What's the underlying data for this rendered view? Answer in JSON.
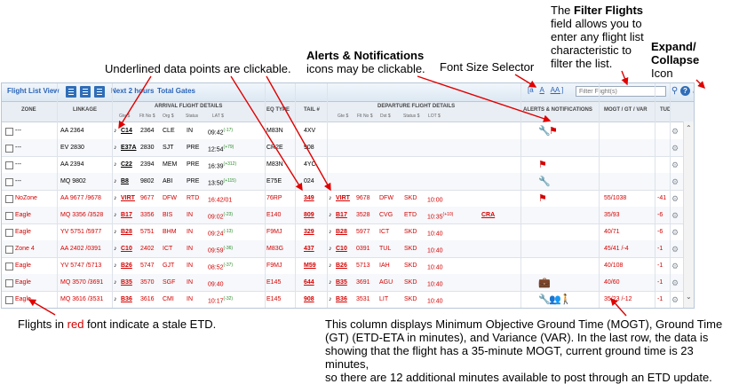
{
  "callouts": {
    "filter_title": "The Filter Flights",
    "filter_body": [
      "field allows you to",
      "enter any flight list",
      "characteristic to",
      "filter the list."
    ],
    "expand_title": "Expand/",
    "expand_title2": "Collapse",
    "expand_sub": "Icon",
    "alerts_title": "Alerts & Notifications",
    "alerts_body": "icons may be clickable.",
    "font_size": "Font Size Selector",
    "underlined": "Underlined data points are clickable.",
    "stale_pre": "Flights in ",
    "stale_red": "red",
    "stale_post": " font indicate a stale ETD.",
    "mogt_lines": [
      "This column displays Minimum Objective Ground Time (MOGT), Ground Time",
      "(GT) (ETD-ETA in minutes), and Variance (VAR). In the last row, the data is",
      "showing that the flight has a 35-minute MOGT, current ground time is 23 minutes,",
      "so there are 12 additional minutes available to post through an ETD update."
    ]
  },
  "toolbar": {
    "title": "Flight List View",
    "next_hours": "Next 2 hours",
    "total_gates": "Total Gates",
    "font_small": "[a",
    "font_med": "A",
    "font_large": "AA ]",
    "filter_placeholder": "Filter Flight(s)",
    "help": "?"
  },
  "header": {
    "zone": "ZONE",
    "linkage": "LINKAGE",
    "arrival": "ARRIVAL FLIGHT DETAILS",
    "arr_sub": [
      "Gte $",
      "Flt No $",
      "Org $",
      "Status",
      "LAT $"
    ],
    "eq_type": "EQ TYPE",
    "tail": "TAIL #",
    "departure": "DEPARTURE FLIGHT DETAILS",
    "dep_sub": [
      "Gte $",
      "Flt No $",
      "Dst $",
      "Status $",
      "LOT $"
    ],
    "alerts": "ALERTS & NOTIFICATIONS",
    "mogt": "MOGT / GT / VAR",
    "tud": "TUD"
  },
  "rows": [
    {
      "zone": "---",
      "linkage": "AA 2364",
      "agte": "C14",
      "aflt": "2364",
      "org": "CLE",
      "ast": "IN",
      "lat": "09:42",
      "latsup": "(-17)",
      "eq": "M83N",
      "tail": "4XV",
      "dgte": "",
      "dflt": "",
      "dst": "",
      "dstat": "",
      "lot": "",
      "lotsup": "",
      "extra": "",
      "mogt": "",
      "tud": "",
      "stale": false,
      "icons": "wrench-flag"
    },
    {
      "zone": "---",
      "linkage": "EV 2830",
      "agte": "E37A",
      "aflt": "2830",
      "org": "SJT",
      "ast": "PRE",
      "lat": "12:54",
      "latsup": "(+79)",
      "eq": "CR2E",
      "tail": "908",
      "dgte": "",
      "dflt": "",
      "dst": "",
      "dstat": "",
      "lot": "",
      "lotsup": "",
      "extra": "",
      "mogt": "",
      "tud": "",
      "stale": false,
      "icons": ""
    },
    {
      "zone": "---",
      "linkage": "AA 2394",
      "agte": "C22",
      "aflt": "2394",
      "org": "MEM",
      "ast": "PRE",
      "lat": "16:39",
      "latsup": "(+312)",
      "eq": "M83N",
      "tail": "4YC",
      "dgte": "",
      "dflt": "",
      "dst": "",
      "dstat": "",
      "lot": "",
      "lotsup": "",
      "extra": "",
      "mogt": "",
      "tud": "",
      "stale": false,
      "icons": "flag"
    },
    {
      "zone": "---",
      "linkage": "MQ 9802",
      "agte": "B8",
      "aflt": "9802",
      "org": "ABI",
      "ast": "PRE",
      "lat": "13:50",
      "latsup": "(+115)",
      "eq": "E75E",
      "tail": "024",
      "dgte": "",
      "dflt": "",
      "dst": "",
      "dstat": "",
      "lot": "",
      "lotsup": "",
      "extra": "",
      "mogt": "",
      "tud": "",
      "stale": false,
      "icons": "wrench"
    },
    {
      "zone": "NoZone",
      "linkage": "AA 9677 /9678",
      "agte": "VIRT",
      "aflt": "9677",
      "org": "DFW",
      "ast": "RTD",
      "lat": "16:42/01",
      "latsup": "",
      "eq": "76RP",
      "tail": "349",
      "dgte": "VIRT",
      "dflt": "9678",
      "dst": "DFW",
      "dstat": "SKD",
      "lot": "10:00",
      "lotsup": "",
      "extra": "",
      "mogt": "55/1038",
      "tud": "-41",
      "stale": true,
      "icons": "flag"
    },
    {
      "zone": "Eagle",
      "linkage": "MQ 3356 /3528",
      "agte": "B17",
      "aflt": "3356",
      "org": "BIS",
      "ast": "IN",
      "lat": "09:02",
      "latsup": "(-23)",
      "eq": "E140",
      "tail": "809",
      "dgte": "B17",
      "dflt": "3528",
      "dst": "CVG",
      "dstat": "ETD",
      "lot": "10:35",
      "lotsup": "(+10)",
      "extra": "CRA",
      "mogt": "35/93",
      "tud": "-6",
      "stale": true,
      "icons": ""
    },
    {
      "zone": "Eagle",
      "linkage": "YV 5751 /5977",
      "agte": "B28",
      "aflt": "5751",
      "org": "BHM",
      "ast": "IN",
      "lat": "09:24",
      "latsup": "(-13)",
      "eq": "F9MJ",
      "tail": "329",
      "dgte": "B28",
      "dflt": "5977",
      "dst": "ICT",
      "dstat": "SKD",
      "lot": "10:40",
      "lotsup": "",
      "extra": "",
      "mogt": "40/71",
      "tud": "-6",
      "stale": true,
      "icons": ""
    },
    {
      "zone": "Zone 4",
      "linkage": "AA 2402 /0391",
      "agte": "C10",
      "aflt": "2402",
      "org": "ICT",
      "ast": "IN",
      "lat": "09:59",
      "latsup": "(-36)",
      "eq": "M83G",
      "tail": "437",
      "dgte": "C10",
      "dflt": "0391",
      "dst": "TUL",
      "dstat": "SKD",
      "lot": "10:40",
      "lotsup": "",
      "extra": "",
      "mogt": "45/41 /-4",
      "tud": "-1",
      "stale": true,
      "icons": ""
    },
    {
      "zone": "Eagle",
      "linkage": "YV 5747 /5713",
      "agte": "B26",
      "aflt": "5747",
      "org": "GJT",
      "ast": "IN",
      "lat": "08:52",
      "latsup": "(-37)",
      "eq": "F9MJ",
      "tail": "M59",
      "dgte": "B26",
      "dflt": "5713",
      "dst": "IAH",
      "dstat": "SKD",
      "lot": "10:40",
      "lotsup": "",
      "extra": "",
      "mogt": "40/108",
      "tud": "-1",
      "stale": true,
      "icons": ""
    },
    {
      "zone": "Eagle",
      "linkage": "MQ 3570 /3691",
      "agte": "B35",
      "aflt": "3570",
      "org": "SGF",
      "ast": "IN",
      "lat": "09:40",
      "latsup": "",
      "eq": "E145",
      "tail": "644",
      "dgte": "B35",
      "dflt": "3691",
      "dst": "AGU",
      "dstat": "SKD",
      "lot": "10:40",
      "lotsup": "",
      "extra": "",
      "mogt": "40/60",
      "tud": "-1",
      "stale": true,
      "icons": "bag"
    },
    {
      "zone": "Eagle",
      "linkage": "MQ 3616 /3531",
      "agte": "B36",
      "aflt": "3616",
      "org": "CMI",
      "ast": "IN",
      "lat": "10:17",
      "latsup": "(-32)",
      "eq": "E145",
      "tail": "908",
      "dgte": "B36",
      "dflt": "3531",
      "dst": "LIT",
      "dstat": "SKD",
      "lot": "10:40",
      "lotsup": "",
      "extra": "",
      "mogt": "35/23 /-12",
      "tud": "-1",
      "stale": true,
      "icons": "multi"
    }
  ]
}
